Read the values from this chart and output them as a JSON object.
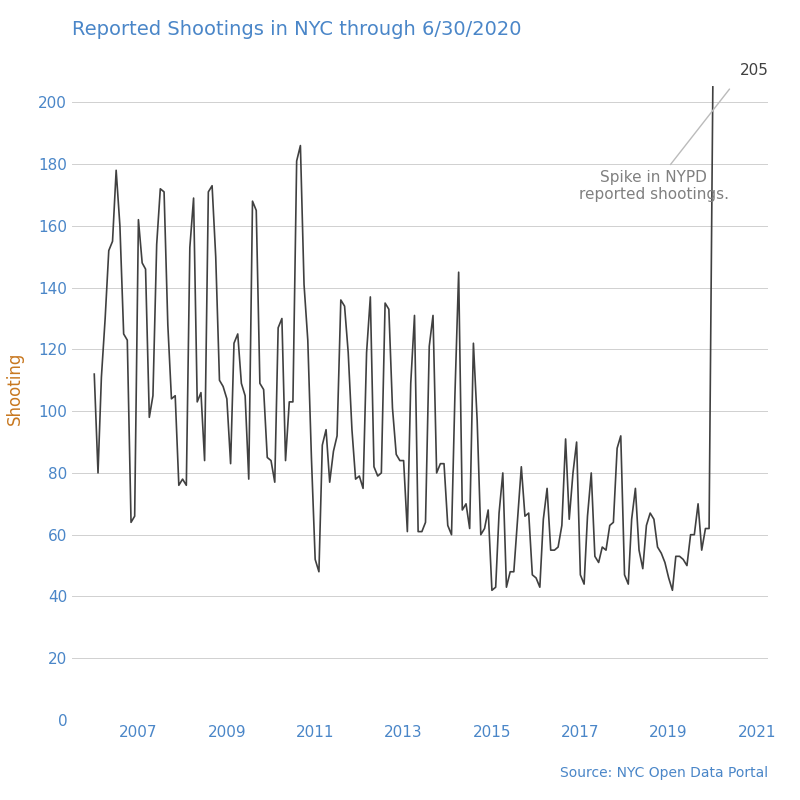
{
  "title": "Reported Shootings in NYC through 6/30/2020",
  "ylabel": "Shooting",
  "source_text": "Source: NYC Open Data Portal",
  "annotation_text": "Spike in NYPD\nreported shootings.",
  "title_color": "#4a86c8",
  "ylabel_color": "#c87820",
  "tick_color": "#4a86c8",
  "annotation_color": "#808080",
  "source_color": "#4a86c8",
  "line_color": "#404040",
  "background_color": "#ffffff",
  "ylim": [
    0,
    215
  ],
  "yticks": [
    0,
    20,
    40,
    60,
    80,
    100,
    120,
    140,
    160,
    180,
    200
  ],
  "spike_label": "205",
  "spike_label_color": "#404040",
  "monthly_data": [
    112,
    80,
    111,
    130,
    152,
    155,
    178,
    160,
    125,
    123,
    64,
    66,
    162,
    148,
    146,
    98,
    105,
    154,
    172,
    171,
    128,
    104,
    105,
    76,
    78,
    76,
    153,
    169,
    103,
    106,
    84,
    171,
    173,
    150,
    110,
    108,
    104,
    83,
    122,
    125,
    109,
    105,
    78,
    168,
    165,
    109,
    107,
    85,
    84,
    77,
    127,
    130,
    84,
    103,
    103,
    181,
    186,
    141,
    123,
    85,
    52,
    48,
    89,
    94,
    77,
    87,
    92,
    136,
    134,
    119,
    94,
    78,
    79,
    75,
    119,
    137,
    82,
    79,
    80,
    135,
    133,
    101,
    86,
    84,
    84,
    61,
    109,
    131,
    61,
    61,
    64,
    121,
    131,
    80,
    83,
    83,
    63,
    60,
    105,
    145,
    68,
    70,
    62,
    122,
    97,
    60,
    62,
    68,
    42,
    43,
    67,
    80,
    43,
    48,
    48,
    65,
    82,
    66,
    67,
    47,
    46,
    43,
    65,
    75,
    55,
    55,
    56,
    63,
    91,
    65,
    80,
    90,
    47,
    44,
    66,
    80,
    53,
    51,
    56,
    55,
    63,
    64,
    88,
    92,
    47,
    44,
    65,
    75,
    55,
    49,
    63,
    67,
    65,
    56,
    54,
    51,
    46,
    42,
    53,
    53,
    52,
    50,
    60,
    60,
    70,
    55,
    62,
    62,
    205
  ]
}
